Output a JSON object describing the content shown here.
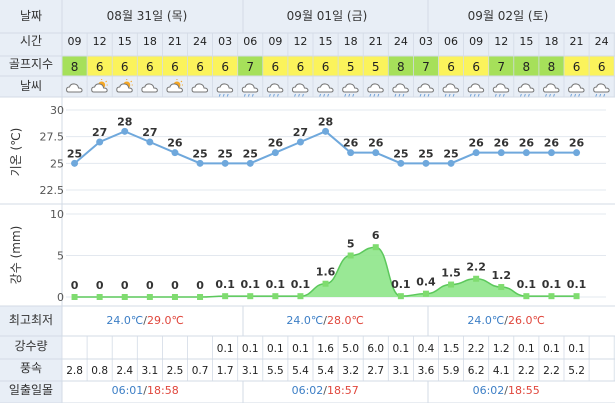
{
  "labels": {
    "date": "날짜",
    "time": "시간",
    "golf_index": "골프지수",
    "weather": "날씨",
    "temp_axis": "기온 (℃)",
    "rain_axis": "강수 (mm)",
    "minmax": "최고최저",
    "precip": "강수량",
    "wind": "풍속",
    "sun": "일출일몰"
  },
  "days": [
    {
      "label": "08월 31일 (목)",
      "min": "24.0℃",
      "max": "29.0℃",
      "sunrise": "06:01",
      "sunset": "18:58"
    },
    {
      "label": "09월 01일 (금)",
      "min": "24.0℃",
      "max": "28.0℃",
      "sunrise": "06:02",
      "sunset": "18:57"
    },
    {
      "label": "09월 02일 (토)",
      "min": "24.0℃",
      "max": "26.0℃",
      "sunrise": "06:02",
      "sunset": "18:55"
    }
  ],
  "hours": [
    "09",
    "12",
    "15",
    "18",
    "21",
    "24",
    "03",
    "06",
    "09",
    "12",
    "15",
    "18",
    "21",
    "24",
    "03",
    "06",
    "09",
    "12",
    "15",
    "18",
    "21",
    "24"
  ],
  "golf_index": [
    8,
    6,
    6,
    6,
    6,
    6,
    6,
    7,
    6,
    6,
    6,
    5,
    5,
    8,
    7,
    6,
    6,
    7,
    8,
    8,
    6,
    6
  ],
  "weather_icons": [
    "cloud-icon",
    "sun-cloud-icon",
    "sun-cloud-icon",
    "cloud-icon",
    "sun-cloud-icon",
    "cloud-icon",
    "rain-icon",
    "rain-icon",
    "rain-icon",
    "rain-icon",
    "rain-icon",
    "rain-icon",
    "rain-icon",
    "rain-icon",
    "rain-icon",
    "rain-icon",
    "rain-icon",
    "rain-icon",
    "rain-icon",
    "rain-icon",
    "rain-icon",
    "rain-icon"
  ],
  "precip_row": [
    "",
    "",
    "",
    "",
    "",
    "",
    "0.1",
    "0.1",
    "0.1",
    "0.1",
    "1.6",
    "5.0",
    "6.0",
    "0.1",
    "0.4",
    "1.5",
    "2.2",
    "1.2",
    "0.1",
    "0.1",
    "0.1",
    ""
  ],
  "wind_row": [
    "2.8",
    "0.8",
    "2.4",
    "3.1",
    "2.5",
    "0.7",
    "1.7",
    "3.1",
    "5.5",
    "5.4",
    "5.4",
    "3.2",
    "2.7",
    "3.1",
    "3.6",
    "5.9",
    "6.2",
    "4.1",
    "2.2",
    "2.2",
    "5.2",
    ""
  ],
  "colors": {
    "header_bg": "#e8eef6",
    "grid": "#d3dbe6",
    "golf_green": "#a6e05a",
    "golf_yellow": "#fbf35b",
    "temp_line": "#6fa8dc",
    "rain_fill": "#8ee68a",
    "rain_line": "#5cc85c",
    "max_red": "#e0463c",
    "min_blue": "#3d7fc6"
  },
  "chart_data": [
    {
      "type": "line",
      "ylabel": "기온 (℃)",
      "ylim": [
        22.5,
        30
      ],
      "yticks": [
        22.5,
        25,
        27.5,
        30
      ],
      "categories": [
        "09",
        "12",
        "15",
        "18",
        "21",
        "24",
        "03",
        "06",
        "09",
        "12",
        "15",
        "18",
        "21",
        "24",
        "03",
        "06",
        "09",
        "12",
        "15",
        "18",
        "21"
      ],
      "values": [
        25,
        27,
        28,
        27,
        26,
        25,
        25,
        25,
        26,
        27,
        28,
        26,
        26,
        25,
        25,
        25,
        26,
        26,
        26,
        26,
        26
      ],
      "grid": true
    },
    {
      "type": "area",
      "ylabel": "강수 (mm)",
      "ylim": [
        0,
        10
      ],
      "yticks": [
        0,
        5,
        10
      ],
      "categories": [
        "09",
        "12",
        "15",
        "18",
        "21",
        "24",
        "03",
        "06",
        "09",
        "12",
        "15",
        "18",
        "21",
        "24",
        "03",
        "06",
        "09",
        "12",
        "15",
        "18",
        "21"
      ],
      "values": [
        0,
        0,
        0,
        0,
        0,
        0,
        0.1,
        0.1,
        0.1,
        0.1,
        1.6,
        5,
        6,
        0.1,
        0.4,
        1.5,
        2.2,
        1.2,
        0.1,
        0.1,
        0.1
      ],
      "grid": true
    }
  ]
}
